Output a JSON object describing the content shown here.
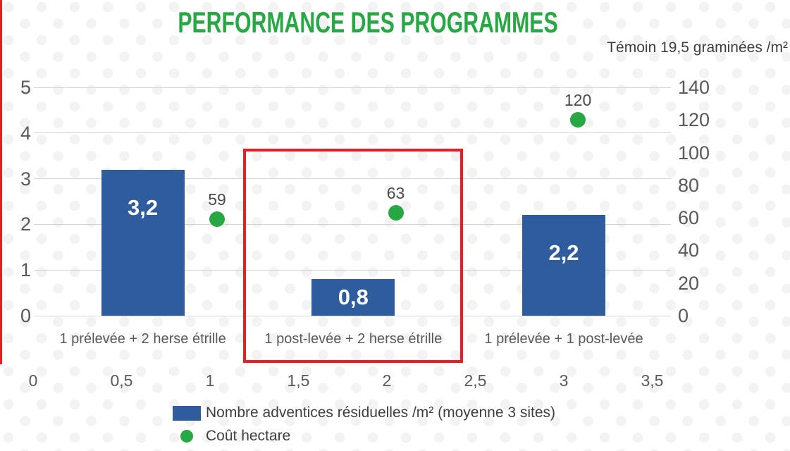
{
  "header": {
    "title": "PERFORMANCE DES PROGRAMMES",
    "note": "Témoin 19,5 graminées /m²"
  },
  "colors": {
    "title_green": "#27A844",
    "bar_blue": "#2E5C9D",
    "dot_green": "#27A844",
    "highlight_red": "#EC1C24",
    "axis_text_gray": "#595959"
  },
  "legend": [
    {
      "swatch": "square",
      "color": "#2E5C9D",
      "label": "Nombre adventices résiduelles /m² (moyenne 3 sites)"
    },
    {
      "swatch": "circle",
      "color": "#27A844",
      "label": "Coût hectare"
    }
  ],
  "chart_data": {
    "type": "bar",
    "title": "PERFORMANCE DES PROGRAMMES",
    "annotation": "Témoin 19,5 graminées /m²",
    "categories": [
      "1 prélevée + 2 herse étrille",
      "1 post-levée + 2 herse étrille",
      "1 prélevée + 1 post-levée"
    ],
    "series": [
      {
        "name": "Nombre adventices résiduelles /m² (moyenne 3 sites)",
        "type": "bar",
        "axis": "left",
        "color": "#2E5C9D",
        "values": [
          3.2,
          0.8,
          2.2
        ],
        "labels": [
          "3,2",
          "0,8",
          "2,2"
        ]
      },
      {
        "name": "Coût hectare",
        "type": "scatter",
        "axis": "right",
        "color": "#27A844",
        "values": [
          59,
          63,
          120
        ],
        "labels": [
          "59",
          "63",
          "120"
        ]
      }
    ],
    "left_axis": {
      "range": [
        0,
        5
      ],
      "ticks": [
        5,
        4,
        3,
        2,
        1,
        0
      ]
    },
    "right_axis": {
      "range": [
        0,
        140
      ],
      "ticks": [
        140,
        120,
        100,
        80,
        60,
        40,
        20,
        0
      ]
    },
    "x_axis": {
      "range": [
        0,
        3.5
      ],
      "ticks": [
        "0",
        "0,5",
        "1",
        "1,5",
        "2",
        "2,5",
        "3",
        "3,5"
      ],
      "tick_values": [
        0,
        0.5,
        1,
        1.5,
        2,
        2.5,
        3,
        3.5
      ]
    },
    "bar_x": [
      0.62,
      1.81,
      3.0
    ],
    "point_x": [
      1.04,
      2.05,
      3.08
    ],
    "highlighted_category_index": 1,
    "grid": true,
    "legend_position": "bottom"
  }
}
